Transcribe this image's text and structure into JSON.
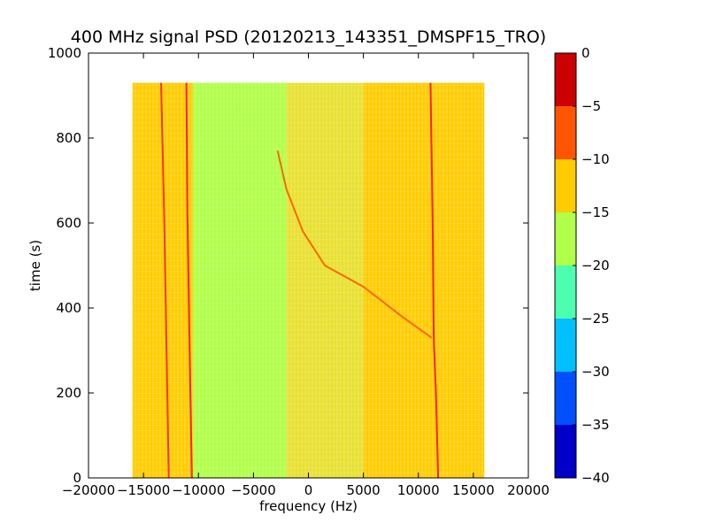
{
  "chart_data": {
    "type": "heatmap",
    "title": "400 MHz signal PSD (20120213_143351_DMSPF15_TRO)",
    "xlabel": "frequency (Hz)",
    "ylabel": "time (s)",
    "xlim": [
      -20000,
      20000
    ],
    "ylim": [
      0,
      1000
    ],
    "xticks": [
      "−20000",
      "−15000",
      "−10000",
      "−5000",
      "0",
      "5000",
      "10000",
      "15000",
      "20000"
    ],
    "xtick_values": [
      -20000,
      -15000,
      -10000,
      -5000,
      0,
      5000,
      10000,
      15000,
      20000
    ],
    "yticks": [
      "0",
      "200",
      "400",
      "600",
      "800",
      "1000"
    ],
    "ytick_values": [
      0,
      200,
      400,
      600,
      800,
      1000
    ],
    "data_extent": {
      "x": [
        -16000,
        16000
      ],
      "y": [
        0,
        930
      ]
    },
    "colormap": "jet",
    "colorbar": {
      "range": [
        -40,
        0
      ],
      "ticks": [
        "−40",
        "−35",
        "−30",
        "−25",
        "−20",
        "−15",
        "−10",
        "−5",
        "0"
      ],
      "tick_values": [
        -40,
        -35,
        -30,
        -25,
        -20,
        -15,
        -10,
        -5,
        0
      ],
      "levels": [
        {
          "from": -40,
          "to": -35,
          "color": "#0000c8"
        },
        {
          "from": -35,
          "to": -30,
          "color": "#0050ff"
        },
        {
          "from": -30,
          "to": -25,
          "color": "#00c0ff"
        },
        {
          "from": -25,
          "to": -20,
          "color": "#4cffb0"
        },
        {
          "from": -20,
          "to": -15,
          "color": "#b0ff48"
        },
        {
          "from": -15,
          "to": -10,
          "color": "#ffcc00"
        },
        {
          "from": -10,
          "to": -5,
          "color": "#ff5500"
        },
        {
          "from": -5,
          "to": 0,
          "color": "#cc0000"
        }
      ]
    },
    "regions": [
      {
        "x0": -16000,
        "x1": -10500,
        "value": -12,
        "color": "#ffcc00"
      },
      {
        "x0": -10500,
        "x1": -2000,
        "value": -17,
        "color": "#b0ff48"
      },
      {
        "x0": -2000,
        "x1": 5000,
        "value": -14,
        "color": "#e8e030"
      },
      {
        "x0": 5000,
        "x1": 16000,
        "value": -11,
        "color": "#ffcc00"
      }
    ],
    "traces": [
      {
        "name": "",
        "color": "#ff3300",
        "points": [
          [
            -12700,
            0
          ],
          [
            -12900,
            300
          ],
          [
            -13100,
            600
          ],
          [
            -13400,
            930
          ]
        ]
      },
      {
        "name": "",
        "color": "#ff2200",
        "points": [
          [
            -10600,
            0
          ],
          [
            -10800,
            300
          ],
          [
            -11000,
            620
          ],
          [
            -11100,
            930
          ]
        ]
      },
      {
        "name": "",
        "color": "#ff2200",
        "points": [
          [
            11800,
            0
          ],
          [
            11600,
            200
          ],
          [
            11400,
            330
          ],
          [
            11300,
            600
          ],
          [
            11100,
            930
          ]
        ]
      },
      {
        "name": "",
        "color": "#ff6600",
        "points": [
          [
            -2800,
            770
          ],
          [
            -2000,
            680
          ],
          [
            -500,
            580
          ],
          [
            1500,
            500
          ],
          [
            5000,
            450
          ],
          [
            8500,
            380
          ],
          [
            11200,
            330
          ]
        ]
      }
    ]
  }
}
